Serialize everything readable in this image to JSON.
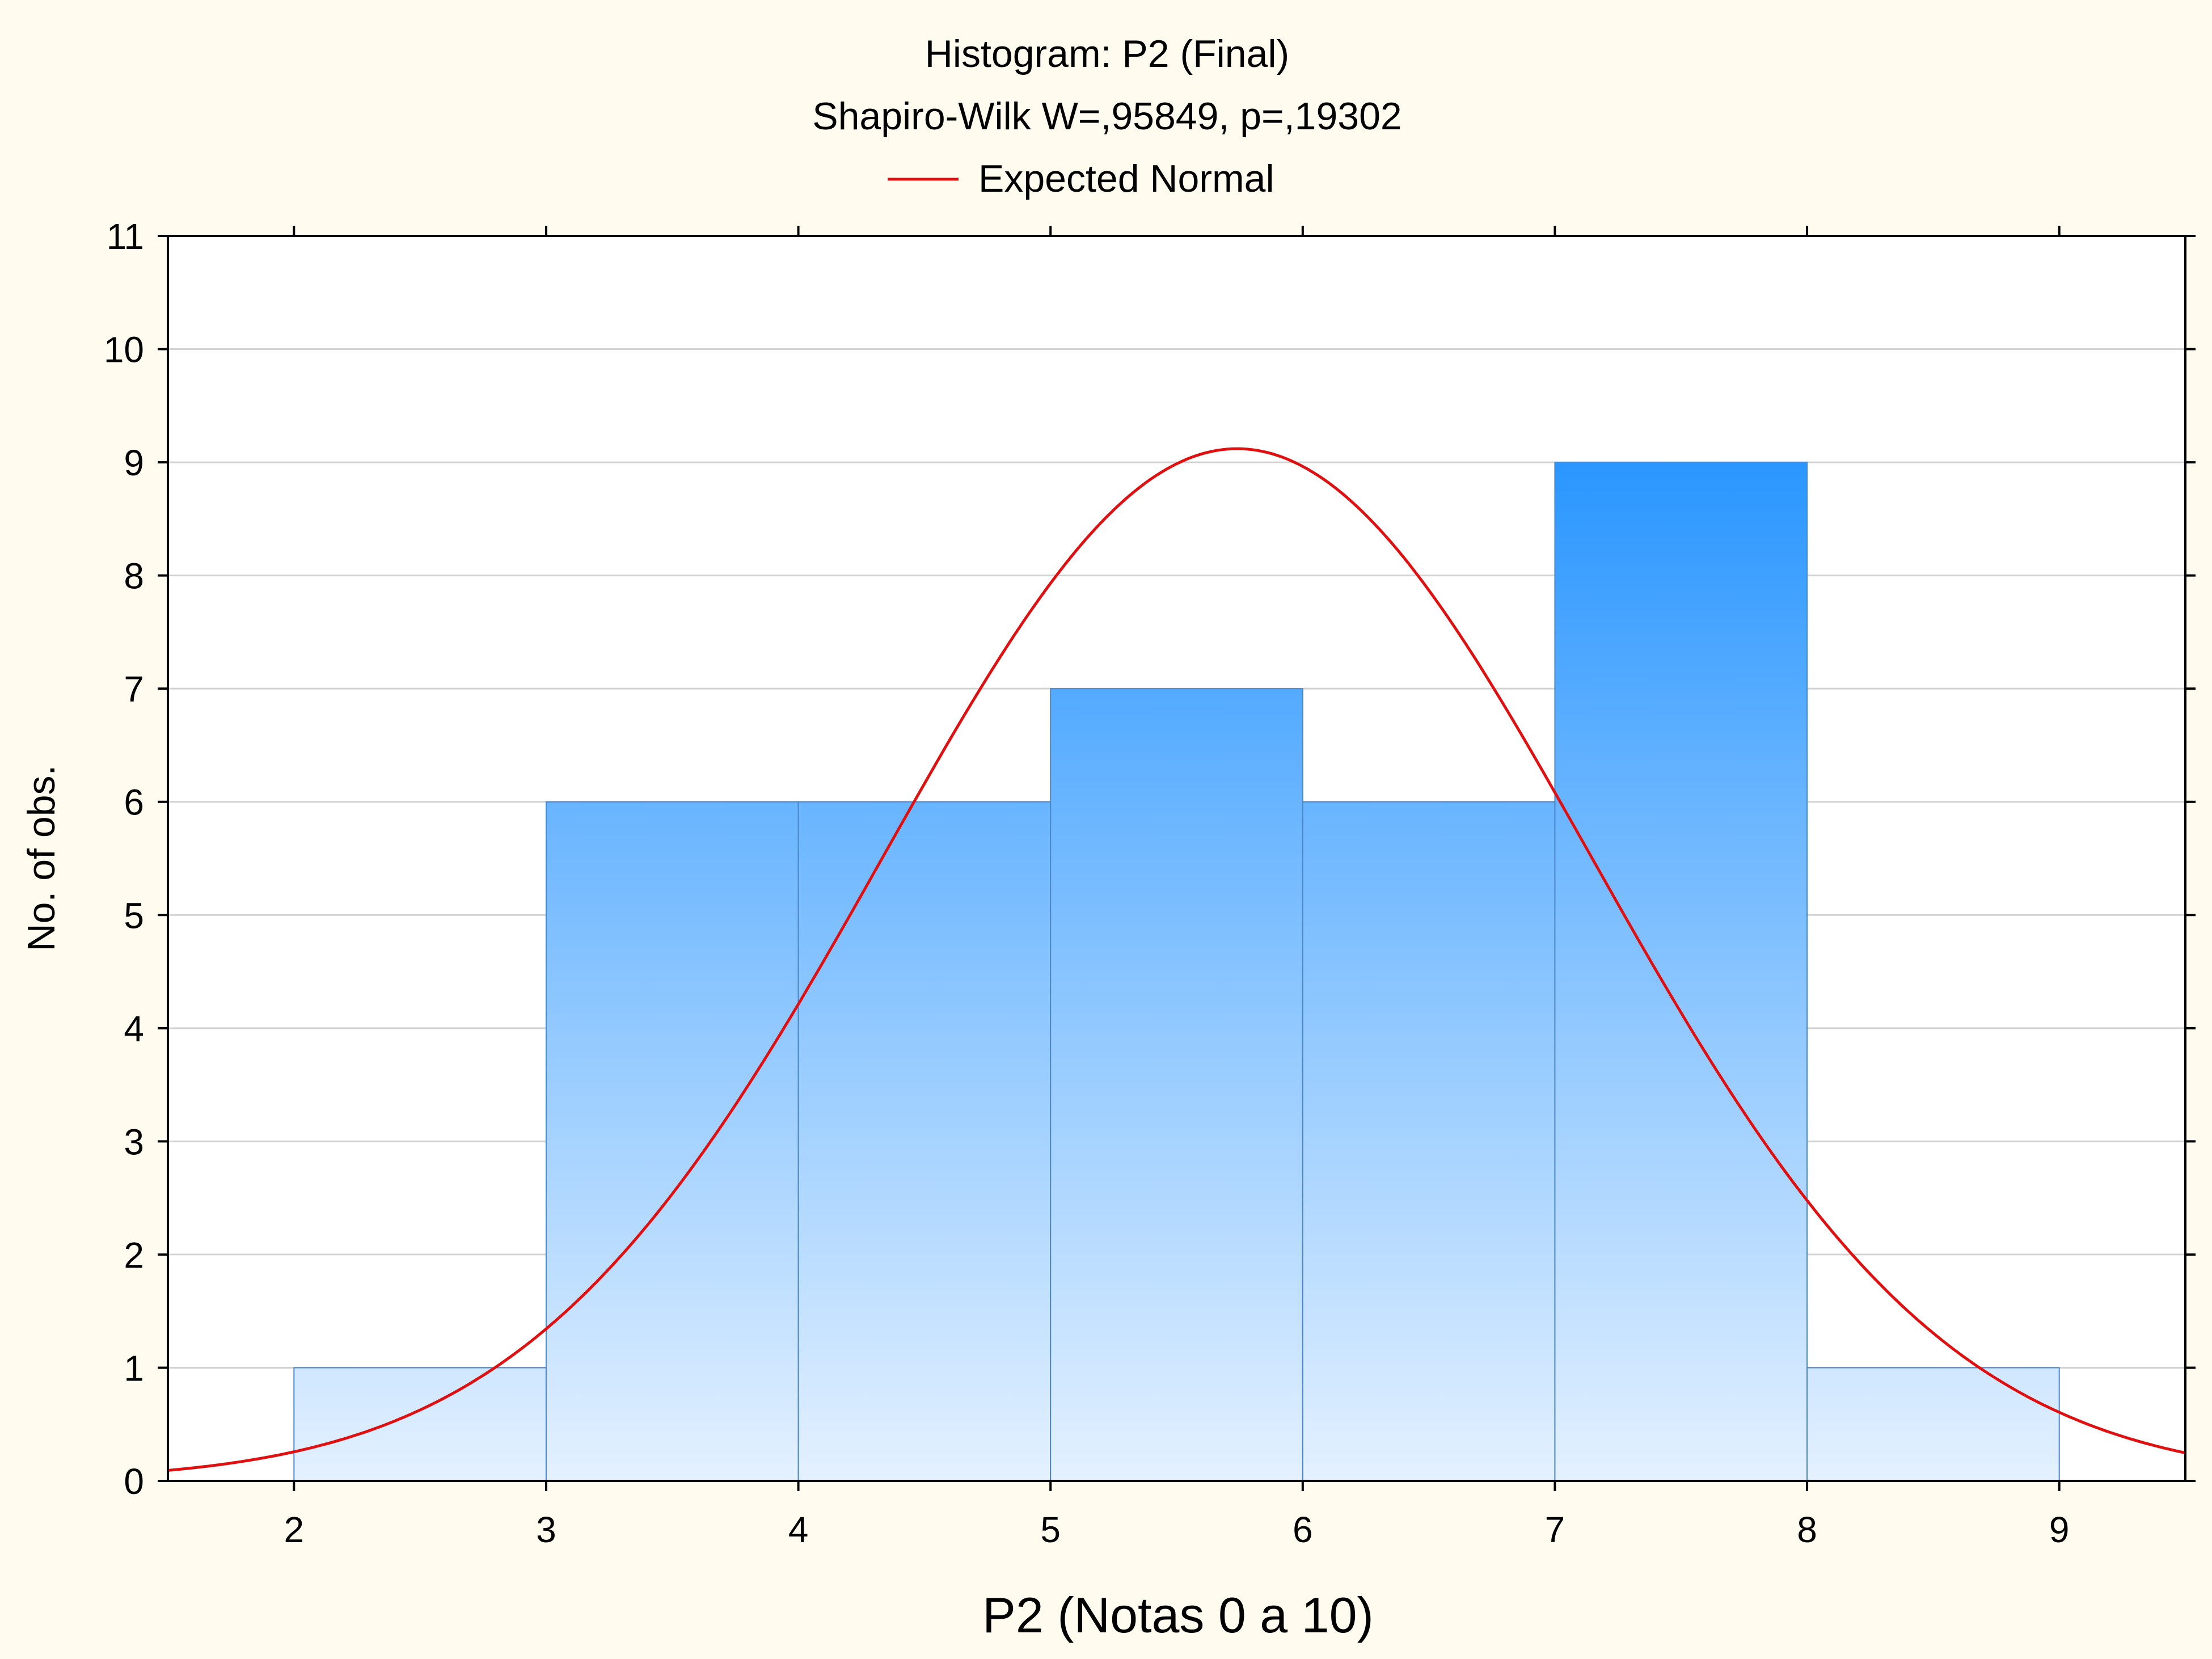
{
  "chart_data": {
    "type": "bar",
    "title": "Histogram: P2 (Final)",
    "subtitle": "Shapiro-Wilk W=,95849, p=,19302",
    "xlabel": "P2 (Notas 0 a 10)",
    "ylabel": "No. of obs.",
    "legend": {
      "placement": "top-center",
      "entries": [
        {
          "name": "Expected Normal",
          "color": "#e01010",
          "type": "line"
        }
      ]
    },
    "xlim": [
      1.5,
      9.5
    ],
    "ylim": [
      0,
      11
    ],
    "x_ticks": [
      "2",
      "3",
      "4",
      "5",
      "6",
      "7",
      "8",
      "9"
    ],
    "y_ticks": [
      "0",
      "1",
      "2",
      "3",
      "4",
      "5",
      "6",
      "7",
      "8",
      "9",
      "10",
      "11"
    ],
    "bins": [
      {
        "from": 2,
        "to": 3,
        "count": 1
      },
      {
        "from": 3,
        "to": 4,
        "count": 6
      },
      {
        "from": 4,
        "to": 5,
        "count": 6
      },
      {
        "from": 5,
        "to": 6,
        "count": 7
      },
      {
        "from": 6,
        "to": 7,
        "count": 6
      },
      {
        "from": 7,
        "to": 8,
        "count": 9
      },
      {
        "from": 8,
        "to": 9,
        "count": 1
      }
    ],
    "expected_normal": {
      "mean": 5.74,
      "peak": 9.12,
      "sd": 1.4
    },
    "grid": "horizontal",
    "colors": {
      "bar_top": "#2a96ff",
      "bar_bottom": "#e4f1ff",
      "bar_stroke": "#4a86c8",
      "curve": "#e01010",
      "grid": "#d2d2d2",
      "background": "#fffbef",
      "plot_background": "#ffffff"
    }
  }
}
